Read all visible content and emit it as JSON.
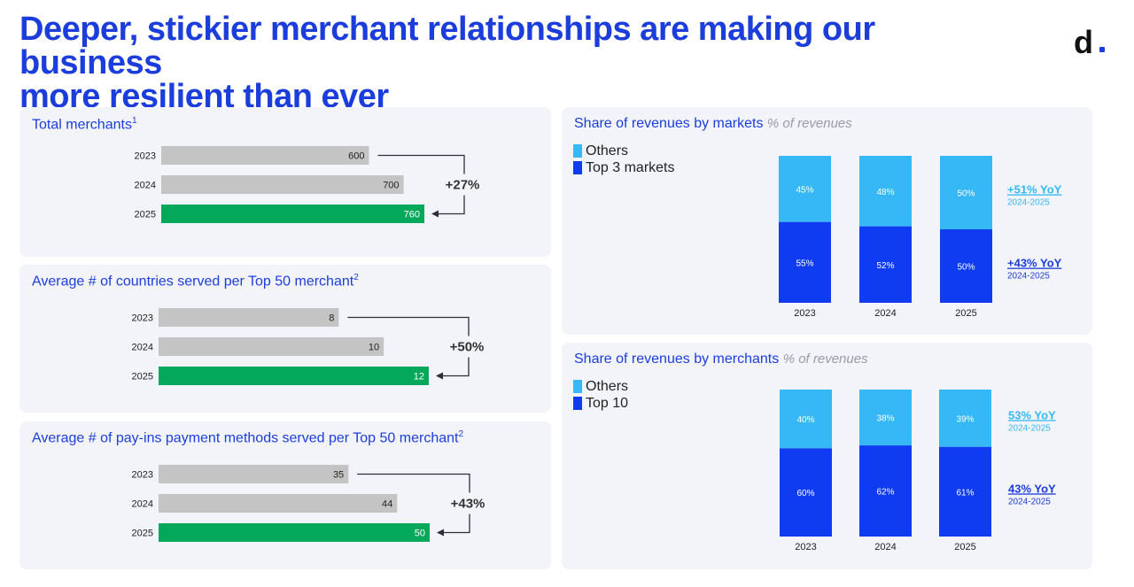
{
  "header": {
    "title_line1": "Deeper, stickier merchant relationships are making our business",
    "title_line2": "more resilient than ever",
    "logo": "d"
  },
  "colors": {
    "brand_blue": "#1b3ddb",
    "bar_gray": "#c4c4c4",
    "bar_green": "#04a85a",
    "stack_light": "#35b8f5",
    "stack_dark": "#0f3cf0",
    "panel_bg": "#f3f4f9"
  },
  "chart_data": [
    {
      "type": "bar",
      "title": "Total merchants",
      "title_sup": "1",
      "categories": [
        "2023",
        "2024",
        "2025"
      ],
      "values": [
        600,
        700,
        760
      ],
      "value_labels": [
        "600",
        "700",
        "760"
      ],
      "highlight": "2025",
      "change_label": "+27%"
    },
    {
      "type": "bar",
      "title": "Average # of countries served per Top 50 merchant",
      "title_sup": "2",
      "categories": [
        "2023",
        "2024",
        "2025"
      ],
      "values": [
        8,
        10,
        12
      ],
      "value_labels": [
        "8",
        "10",
        "12"
      ],
      "highlight": "2025",
      "change_label": "+50%"
    },
    {
      "type": "bar",
      "title": "Average # of pay-ins payment methods served per Top 50 merchant",
      "title_sup": "2",
      "categories": [
        "2023",
        "2024",
        "2025"
      ],
      "values": [
        35,
        44,
        50
      ],
      "value_labels": [
        "35",
        "44",
        "50"
      ],
      "highlight": "2025",
      "change_label": "+43%"
    },
    {
      "type": "bar",
      "stacked": true,
      "title": "Share of revenues by markets",
      "subtitle": "% of revenues",
      "categories": [
        "2023",
        "2024",
        "2025"
      ],
      "series": [
        {
          "name": "Others",
          "values": [
            45,
            48,
            50
          ],
          "labels": [
            "45%",
            "48%",
            "50%"
          ]
        },
        {
          "name": "Top 3 markets",
          "values": [
            55,
            52,
            50
          ],
          "labels": [
            "55%",
            "52%",
            "50%"
          ]
        }
      ],
      "annotations": [
        {
          "label": "+51% YoY",
          "sub": "2024-2025"
        },
        {
          "label": "+43% YoY",
          "sub": "2024-2025"
        }
      ]
    },
    {
      "type": "bar",
      "stacked": true,
      "title": "Share of revenues by merchants",
      "subtitle": "% of revenues",
      "categories": [
        "2023",
        "2024",
        "2025"
      ],
      "series": [
        {
          "name": "Others",
          "values": [
            40,
            38,
            39
          ],
          "labels": [
            "40%",
            "38%",
            "39%"
          ]
        },
        {
          "name": "Top 10",
          "values": [
            60,
            62,
            61
          ],
          "labels": [
            "60%",
            "62%",
            "61%"
          ]
        }
      ],
      "annotations": [
        {
          "label": "53% YoY",
          "sub": "2024-2025"
        },
        {
          "label": "43% YoY",
          "sub": "2024-2025"
        }
      ]
    }
  ]
}
